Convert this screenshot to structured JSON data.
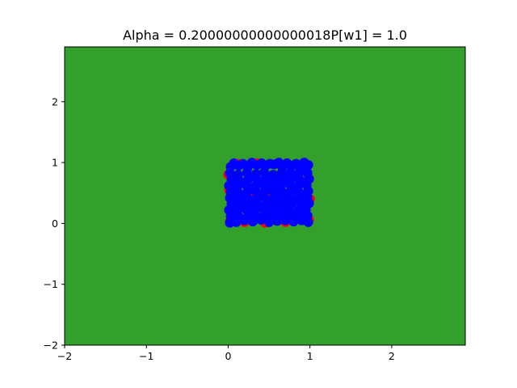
{
  "chart_data": {
    "type": "scatter",
    "title": "Alpha = 0.20000000000000018P[w1] = 1.0",
    "xlabel": "",
    "ylabel": "",
    "xlim": [
      -2,
      2.9
    ],
    "ylim": [
      -2,
      2.9
    ],
    "x_ticks": [
      -2,
      -1,
      0,
      1,
      2
    ],
    "y_ticks": [
      -2,
      -1,
      0,
      1,
      2
    ],
    "x_tick_labels": [
      "−2",
      "−1",
      "0",
      "1",
      "2"
    ],
    "y_tick_labels": [
      "−2",
      "−1",
      "0",
      "1",
      "2"
    ],
    "grid": false,
    "background_region": {
      "color": "#33a02c",
      "x_range": [
        -2,
        2.9
      ],
      "y_range": [
        -2,
        2.9
      ]
    },
    "series": [
      {
        "color": "#ff0000",
        "marker": "circle",
        "points": [
          [
            0.02,
            0.03
          ],
          [
            0.12,
            0.98
          ],
          [
            0.35,
            0.99
          ],
          [
            0.62,
            0.98
          ],
          [
            0.9,
            0.97
          ],
          [
            1.0,
            0.4
          ],
          [
            0.99,
            0.06
          ],
          [
            0.7,
            0.02
          ],
          [
            0.45,
            0.01
          ],
          [
            0.2,
            0.02
          ],
          [
            0.01,
            0.55
          ],
          [
            0.0,
            0.8
          ],
          [
            0.98,
            0.75
          ],
          [
            0.55,
            0.5
          ],
          [
            0.3,
            0.45
          ]
        ]
      },
      {
        "color": "#0000ff",
        "marker": "circle",
        "points": [
          [
            0.02,
            0.01
          ],
          [
            0.1,
            0.02
          ],
          [
            0.2,
            0.05
          ],
          [
            0.3,
            0.03
          ],
          [
            0.4,
            0.06
          ],
          [
            0.5,
            0.02
          ],
          [
            0.6,
            0.04
          ],
          [
            0.7,
            0.05
          ],
          [
            0.8,
            0.03
          ],
          [
            0.9,
            0.05
          ],
          [
            0.98,
            0.02
          ],
          [
            0.03,
            0.12
          ],
          [
            0.14,
            0.1
          ],
          [
            0.25,
            0.13
          ],
          [
            0.36,
            0.11
          ],
          [
            0.46,
            0.14
          ],
          [
            0.57,
            0.1
          ],
          [
            0.67,
            0.12
          ],
          [
            0.78,
            0.14
          ],
          [
            0.88,
            0.11
          ],
          [
            0.97,
            0.13
          ],
          [
            0.01,
            0.22
          ],
          [
            0.11,
            0.2
          ],
          [
            0.22,
            0.23
          ],
          [
            0.32,
            0.21
          ],
          [
            0.43,
            0.24
          ],
          [
            0.53,
            0.2
          ],
          [
            0.64,
            0.22
          ],
          [
            0.74,
            0.24
          ],
          [
            0.85,
            0.21
          ],
          [
            0.95,
            0.23
          ],
          [
            0.04,
            0.32
          ],
          [
            0.15,
            0.3
          ],
          [
            0.26,
            0.33
          ],
          [
            0.37,
            0.31
          ],
          [
            0.48,
            0.34
          ],
          [
            0.58,
            0.3
          ],
          [
            0.69,
            0.32
          ],
          [
            0.79,
            0.34
          ],
          [
            0.9,
            0.31
          ],
          [
            0.99,
            0.33
          ],
          [
            0.02,
            0.42
          ],
          [
            0.12,
            0.4
          ],
          [
            0.23,
            0.43
          ],
          [
            0.34,
            0.41
          ],
          [
            0.44,
            0.44
          ],
          [
            0.55,
            0.4
          ],
          [
            0.65,
            0.42
          ],
          [
            0.76,
            0.44
          ],
          [
            0.86,
            0.41
          ],
          [
            0.97,
            0.43
          ],
          [
            0.03,
            0.52
          ],
          [
            0.13,
            0.5
          ],
          [
            0.24,
            0.53
          ],
          [
            0.35,
            0.51
          ],
          [
            0.45,
            0.54
          ],
          [
            0.56,
            0.5
          ],
          [
            0.66,
            0.52
          ],
          [
            0.77,
            0.54
          ],
          [
            0.87,
            0.51
          ],
          [
            0.98,
            0.53
          ],
          [
            0.01,
            0.62
          ],
          [
            0.11,
            0.6
          ],
          [
            0.22,
            0.63
          ],
          [
            0.33,
            0.61
          ],
          [
            0.43,
            0.64
          ],
          [
            0.54,
            0.6
          ],
          [
            0.64,
            0.62
          ],
          [
            0.75,
            0.64
          ],
          [
            0.85,
            0.61
          ],
          [
            0.96,
            0.63
          ],
          [
            0.04,
            0.72
          ],
          [
            0.14,
            0.7
          ],
          [
            0.25,
            0.73
          ],
          [
            0.36,
            0.71
          ],
          [
            0.46,
            0.74
          ],
          [
            0.57,
            0.7
          ],
          [
            0.67,
            0.72
          ],
          [
            0.78,
            0.74
          ],
          [
            0.88,
            0.71
          ],
          [
            0.99,
            0.73
          ],
          [
            0.02,
            0.82
          ],
          [
            0.12,
            0.8
          ],
          [
            0.23,
            0.83
          ],
          [
            0.34,
            0.81
          ],
          [
            0.44,
            0.84
          ],
          [
            0.55,
            0.8
          ],
          [
            0.65,
            0.82
          ],
          [
            0.76,
            0.84
          ],
          [
            0.86,
            0.81
          ],
          [
            0.97,
            0.83
          ],
          [
            0.03,
            0.93
          ],
          [
            0.13,
            0.95
          ],
          [
            0.24,
            0.92
          ],
          [
            0.35,
            0.96
          ],
          [
            0.45,
            0.94
          ],
          [
            0.56,
            0.97
          ],
          [
            0.66,
            0.93
          ],
          [
            0.77,
            0.95
          ],
          [
            0.87,
            0.92
          ],
          [
            0.98,
            0.96
          ],
          [
            0.07,
            0.99
          ],
          [
            0.18,
            0.98
          ],
          [
            0.29,
            1.0
          ],
          [
            0.41,
            0.99
          ],
          [
            0.51,
            0.98
          ],
          [
            0.62,
            1.0
          ],
          [
            0.72,
            0.99
          ],
          [
            0.83,
            0.98
          ],
          [
            0.93,
            1.0
          ],
          [
            0.08,
            0.47
          ],
          [
            0.18,
            0.37
          ],
          [
            0.28,
            0.57
          ],
          [
            0.39,
            0.27
          ],
          [
            0.49,
            0.67
          ],
          [
            0.6,
            0.17
          ],
          [
            0.71,
            0.77
          ],
          [
            0.81,
            0.07
          ],
          [
            0.92,
            0.87
          ]
        ]
      }
    ]
  }
}
